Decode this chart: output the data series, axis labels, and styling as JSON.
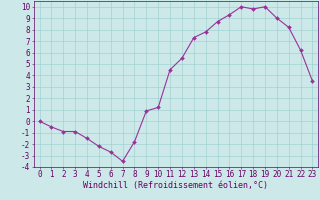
{
  "x": [
    0,
    1,
    2,
    3,
    4,
    5,
    6,
    7,
    8,
    9,
    10,
    11,
    12,
    13,
    14,
    15,
    16,
    17,
    18,
    19,
    20,
    21,
    22,
    23
  ],
  "y": [
    0,
    -0.5,
    -0.9,
    -0.9,
    -1.5,
    -2.2,
    -2.7,
    -3.5,
    -1.8,
    0.9,
    1.2,
    4.5,
    5.5,
    7.3,
    7.8,
    8.7,
    9.3,
    10.0,
    9.8,
    10.0,
    9.0,
    8.2,
    6.2,
    3.5
  ],
  "xlabel": "Windchill (Refroidissement éolien,°C)",
  "xlim": [
    -0.5,
    23.5
  ],
  "ylim": [
    -4,
    10.5
  ],
  "line_color": "#993399",
  "marker_color": "#993399",
  "bg_color": "#cce8e8",
  "grid_color": "#99cccc",
  "text_color": "#660066",
  "tick_fontsize": 5.5,
  "xlabel_fontsize": 6.0
}
